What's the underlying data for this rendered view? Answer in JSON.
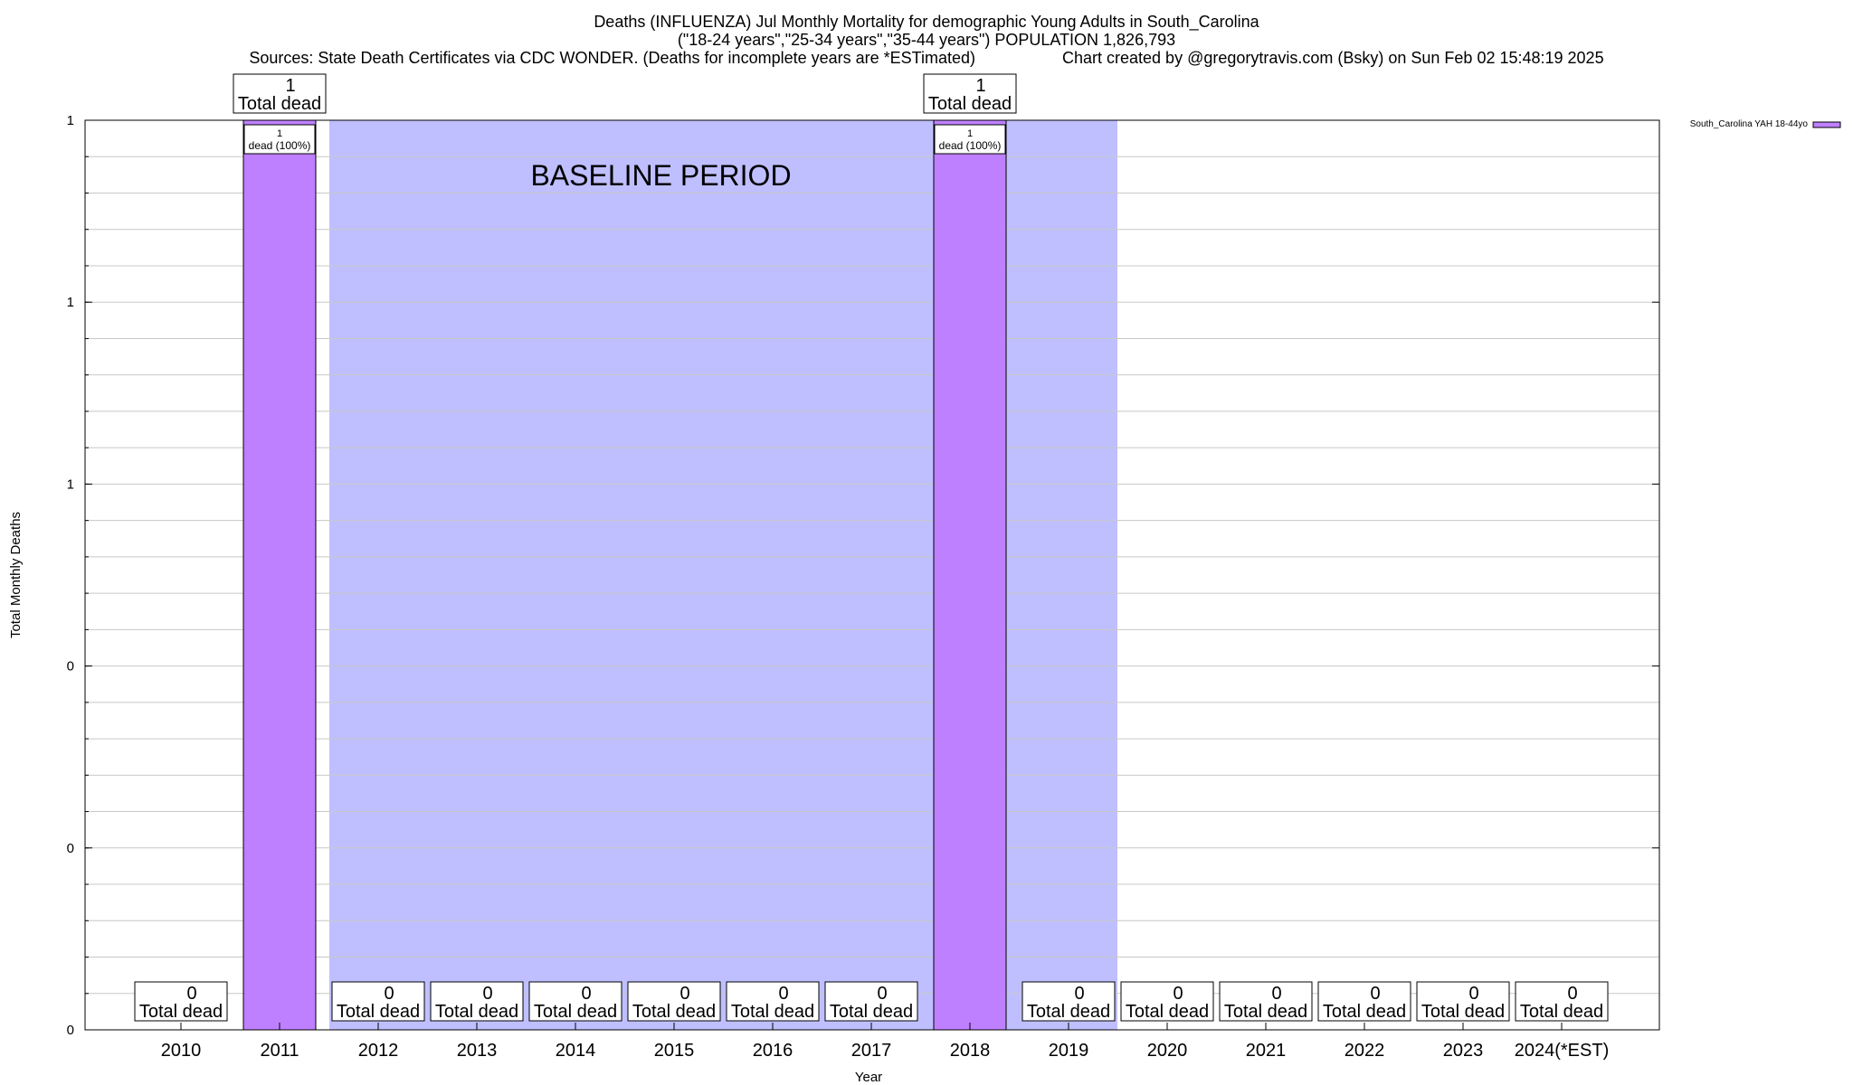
{
  "header": {
    "title_line1": "Deaths (INFLUENZA) Jul Monthly Mortality for demographic Young Adults in South_Carolina",
    "title_line2": "(\"18-24 years\",\"25-34 years\",\"35-44 years\") POPULATION 1,826,793",
    "sources": "Sources: State Death Certificates via CDC WONDER. (Deaths for incomplete years are *ESTimated)",
    "credit": "Chart created by @gregorytravis.com (Bsky) on Sun Feb 02 15:48:19 2025"
  },
  "colors": {
    "bar": "#bf80ff",
    "baseline": "#bfbfff",
    "grid": "#c8c8c8",
    "axis": "#000000"
  },
  "chart_data": {
    "type": "bar",
    "title": "Deaths (INFLUENZA) Jul Monthly Mortality for demographic Young Adults in South_Carolina",
    "xlabel": "Year",
    "ylabel": "Total Monthly Deaths",
    "categories": [
      "2010",
      "2011",
      "2012",
      "2013",
      "2014",
      "2015",
      "2016",
      "2017",
      "2018",
      "2019",
      "2020",
      "2021",
      "2022",
      "2023",
      "2024(*EST)"
    ],
    "series": [
      {
        "name": "South_Carolina YAH 18-44yo",
        "values": [
          0,
          1,
          0,
          0,
          0,
          0,
          0,
          0,
          1,
          0,
          0,
          0,
          0,
          0,
          0
        ]
      }
    ],
    "ylim": [
      0,
      1
    ],
    "y_tick_values": [
      0,
      0.2,
      0.4,
      0.6,
      0.8,
      1.0
    ],
    "y_tick_labels": [
      "0",
      "0",
      "0",
      "1",
      "1",
      "1"
    ],
    "grid": true,
    "legend_position": "top-right",
    "total_label_suffix": "Total dead",
    "inner_label_suffix": "dead (100%)",
    "annotations": [
      {
        "type": "shaded-region",
        "label": "BASELINE PERIOD",
        "x_start": "2012",
        "x_end": "2019"
      }
    ]
  }
}
